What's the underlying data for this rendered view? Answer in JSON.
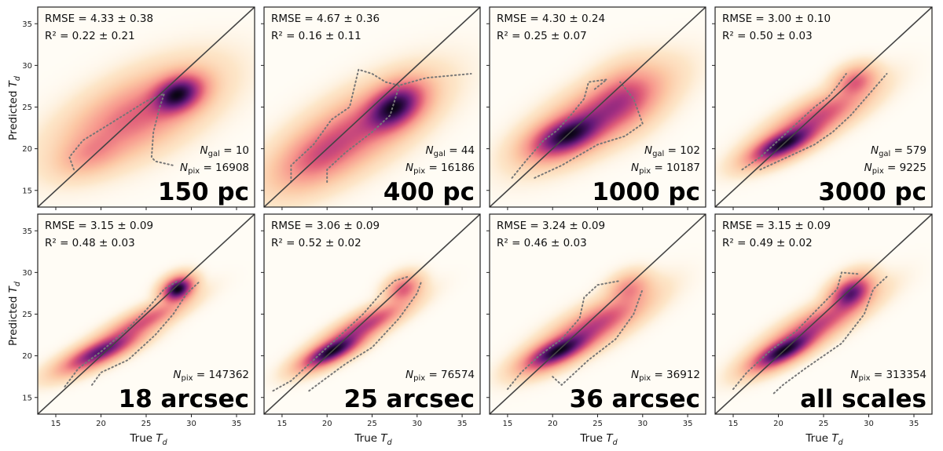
{
  "chart_data": {
    "type": "heatmap",
    "description_units": "dust temperature T_d",
    "axis": {
      "xlim": [
        13,
        37
      ],
      "ylim": [
        13,
        37
      ],
      "ticks": [
        15,
        20,
        25,
        30,
        35
      ]
    },
    "labels": {
      "x_main": "True ",
      "x_sub": "T",
      "x_subscript": "d",
      "y_main": "Predicted ",
      "y_sub": "T",
      "y_subscript": "d"
    },
    "panels": [
      {
        "id": "p150",
        "label": "150 pc",
        "rmse": "RMSE = 4.33 ± 0.38",
        "r2": "R² = 0.22 ± 0.21",
        "ngal_name": "N",
        "ngal_sub": "gal",
        "ngal": " = 10",
        "npix_name": "N",
        "npix_sub": "pix",
        "npix": " = 16908",
        "blobs": [
          {
            "x": 28.5,
            "y": 26.5,
            "sx": 1.6,
            "sy": 1.3,
            "rho": 0.3,
            "w": 1.0
          },
          {
            "x": 24,
            "y": 24,
            "sx": 4,
            "sy": 2.8,
            "rho": 0.6,
            "w": 0.3
          },
          {
            "x": 19,
            "y": 19.5,
            "sx": 2,
            "sy": 1.4,
            "rho": 0.4,
            "w": 0.14
          }
        ],
        "contour": [
          [
            17,
            17.5
          ],
          [
            16.5,
            19
          ],
          [
            18,
            21
          ],
          [
            21,
            23
          ],
          [
            25,
            25.7
          ],
          [
            27,
            26.6
          ],
          [
            26.5,
            25
          ],
          [
            25.8,
            22
          ],
          [
            25.6,
            19
          ],
          [
            26,
            18.5
          ],
          [
            28,
            18
          ]
        ]
      },
      {
        "id": "p400",
        "label": "400 pc",
        "rmse": "RMSE = 4.67 ± 0.36",
        "r2": "R² = 0.16 ± 0.11",
        "ngal_name": "N",
        "ngal_sub": "gal",
        "ngal": " = 44",
        "npix_name": "N",
        "npix_sub": "pix",
        "npix": " = 16186",
        "blobs": [
          {
            "x": 27.5,
            "y": 25,
            "sx": 1.8,
            "sy": 1.6,
            "rho": 0.4,
            "w": 1.0
          },
          {
            "x": 23,
            "y": 22,
            "sx": 4,
            "sy": 3,
            "rho": 0.7,
            "w": 0.35
          },
          {
            "x": 19,
            "y": 19,
            "sx": 2.5,
            "sy": 2,
            "rho": 0.5,
            "w": 0.2
          }
        ],
        "contour": [
          [
            16,
            16
          ],
          [
            16,
            18
          ],
          [
            18.5,
            20.5
          ],
          [
            20.5,
            23.5
          ],
          [
            22.5,
            25
          ],
          [
            23.5,
            29.5
          ],
          [
            25,
            29
          ],
          [
            26.5,
            28
          ],
          [
            28,
            27.6
          ],
          [
            31,
            28.5
          ],
          [
            36,
            29
          ]
        ],
        "contour2": [
          [
            20,
            16
          ],
          [
            20,
            17.5
          ],
          [
            22,
            19.5
          ],
          [
            25,
            22
          ],
          [
            27,
            24
          ],
          [
            28,
            27.5
          ]
        ]
      },
      {
        "id": "p1000",
        "label": "1000 pc",
        "rmse": "RMSE = 4.30 ± 0.24",
        "r2": "R² = 0.25 ± 0.07",
        "ngal_name": "N",
        "ngal_sub": "gal",
        "ngal": " = 102",
        "npix_name": "N",
        "npix_sub": "pix",
        "npix": " = 10187",
        "blobs": [
          {
            "x": 21.5,
            "y": 21.5,
            "sx": 2.2,
            "sy": 1.4,
            "rho": 0.5,
            "w": 1.0
          },
          {
            "x": 25,
            "y": 24,
            "sx": 3.5,
            "sy": 2.5,
            "rho": 0.7,
            "w": 0.5
          },
          {
            "x": 28,
            "y": 26,
            "sx": 2,
            "sy": 2,
            "rho": 0.3,
            "w": 0.25
          }
        ],
        "contour": [
          [
            15.5,
            16.5
          ],
          [
            17,
            18.5
          ],
          [
            19,
            21
          ],
          [
            20.5,
            22.2
          ],
          [
            22,
            24
          ],
          [
            23.5,
            26
          ],
          [
            24,
            28
          ],
          [
            26,
            28.3
          ],
          [
            24.5,
            27
          ]
        ],
        "contour2": [
          [
            18,
            16.5
          ],
          [
            21,
            18
          ],
          [
            25,
            20.5
          ],
          [
            28,
            21.5
          ],
          [
            30,
            23
          ],
          [
            29,
            26
          ],
          [
            27.5,
            28
          ]
        ]
      },
      {
        "id": "p3000",
        "label": "3000 pc",
        "rmse": "RMSE = 3.00 ± 0.10",
        "r2": "R² = 0.50 ± 0.03",
        "ngal_name": "N",
        "ngal_sub": "gal",
        "ngal": " = 579",
        "npix_name": "N",
        "npix_sub": "pix",
        "npix": " = 9225",
        "blobs": [
          {
            "x": 20.5,
            "y": 20.5,
            "sx": 2,
            "sy": 1.2,
            "rho": 0.7,
            "w": 1.0
          },
          {
            "x": 24,
            "y": 23.5,
            "sx": 3,
            "sy": 2,
            "rho": 0.8,
            "w": 0.4
          },
          {
            "x": 28.5,
            "y": 28,
            "sx": 1.2,
            "sy": 1,
            "rho": 0.3,
            "w": 0.3
          }
        ],
        "contour": [
          [
            16,
            17.5
          ],
          [
            18,
            19
          ],
          [
            20,
            21
          ],
          [
            22,
            23
          ],
          [
            24,
            25
          ],
          [
            25.5,
            26.2
          ],
          [
            26.5,
            27.5
          ],
          [
            27.5,
            29
          ]
        ],
        "contour2": [
          [
            18,
            17.5
          ],
          [
            21,
            19
          ],
          [
            24,
            20.5
          ],
          [
            26,
            22
          ],
          [
            28,
            24
          ],
          [
            30,
            26.5
          ],
          [
            32,
            29
          ]
        ]
      },
      {
        "id": "p18",
        "label": "18 arcsec",
        "rmse": "RMSE = 3.15 ± 0.09",
        "r2": "R² = 0.48 ± 0.03",
        "ngal_name": "",
        "ngal_sub": "",
        "ngal": "",
        "npix_name": "N",
        "npix_sub": "pix",
        "npix": " = 147362",
        "blobs": [
          {
            "x": 28.5,
            "y": 28,
            "sx": 0.9,
            "sy": 0.8,
            "rho": 0.3,
            "w": 1.0
          },
          {
            "x": 20,
            "y": 20.5,
            "sx": 2.3,
            "sy": 1.3,
            "rho": 0.8,
            "w": 0.7
          },
          {
            "x": 24.5,
            "y": 24,
            "sx": 2.5,
            "sy": 1.5,
            "rho": 0.85,
            "w": 0.3
          }
        ],
        "contour": [
          [
            16,
            16.3
          ],
          [
            17.5,
            18.5
          ],
          [
            20,
            20.5
          ],
          [
            23,
            23.3
          ],
          [
            25,
            25.5
          ],
          [
            27,
            28
          ],
          [
            28.5,
            29
          ]
        ],
        "contour2": [
          [
            19,
            16.5
          ],
          [
            20,
            18
          ],
          [
            23,
            19.5
          ],
          [
            26,
            22.5
          ],
          [
            28,
            25
          ],
          [
            29.5,
            27.5
          ],
          [
            31,
            29
          ]
        ]
      },
      {
        "id": "p25",
        "label": "25 arcsec",
        "rmse": "RMSE = 3.06 ± 0.09",
        "r2": "R² = 0.52 ± 0.02",
        "ngal_name": "",
        "ngal_sub": "",
        "ngal": "",
        "npix_name": "N",
        "npix_sub": "pix",
        "npix": " = 76574",
        "blobs": [
          {
            "x": 20.5,
            "y": 20.5,
            "sx": 1.8,
            "sy": 1.1,
            "rho": 0.75,
            "w": 1.0
          },
          {
            "x": 24,
            "y": 23.5,
            "sx": 2.5,
            "sy": 1.6,
            "rho": 0.85,
            "w": 0.45
          },
          {
            "x": 28.5,
            "y": 28,
            "sx": 1,
            "sy": 0.9,
            "rho": 0.3,
            "w": 0.3
          }
        ],
        "contour": [
          [
            14,
            15.8
          ],
          [
            16,
            17
          ],
          [
            18,
            19
          ],
          [
            20,
            21
          ],
          [
            22,
            23
          ],
          [
            24,
            25
          ],
          [
            26,
            27.5
          ],
          [
            27.5,
            29
          ],
          [
            29,
            29.5
          ]
        ],
        "contour2": [
          [
            18,
            15.8
          ],
          [
            19.5,
            17
          ],
          [
            22,
            19
          ],
          [
            25,
            21
          ],
          [
            28,
            24.5
          ],
          [
            30,
            27.5
          ],
          [
            30.5,
            29
          ]
        ]
      },
      {
        "id": "p36",
        "label": "36 arcsec",
        "rmse": "RMSE = 3.24 ± 0.09",
        "r2": "R² = 0.46 ± 0.03",
        "ngal_name": "",
        "ngal_sub": "",
        "ngal": "",
        "npix_name": "N",
        "npix_sub": "pix",
        "npix": " = 36912",
        "blobs": [
          {
            "x": 20.5,
            "y": 20.5,
            "sx": 2,
            "sy": 1.2,
            "rho": 0.7,
            "w": 1.0
          },
          {
            "x": 24.5,
            "y": 23.5,
            "sx": 3,
            "sy": 2,
            "rho": 0.8,
            "w": 0.45
          },
          {
            "x": 28.5,
            "y": 28,
            "sx": 1.2,
            "sy": 1,
            "rho": 0.3,
            "w": 0.2
          }
        ],
        "contour": [
          [
            15,
            16
          ],
          [
            16.5,
            18
          ],
          [
            18.5,
            20
          ],
          [
            21,
            22
          ],
          [
            23,
            24.5
          ],
          [
            23.5,
            27
          ],
          [
            25,
            28.5
          ],
          [
            27.5,
            29
          ]
        ],
        "contour2": [
          [
            20,
            17.5
          ],
          [
            21,
            16.5
          ],
          [
            24,
            19.5
          ],
          [
            27,
            22
          ],
          [
            29,
            25
          ],
          [
            30,
            28
          ]
        ]
      },
      {
        "id": "pall",
        "label": "all scales",
        "rmse": "RMSE = 3.15 ± 0.09",
        "r2": "R² = 0.49 ± 0.02",
        "ngal_name": "",
        "ngal_sub": "",
        "ngal": "",
        "npix_name": "N",
        "npix_sub": "pix",
        "npix": " = 313354",
        "blobs": [
          {
            "x": 20.5,
            "y": 20.5,
            "sx": 1.9,
            "sy": 1.2,
            "rho": 0.75,
            "w": 1.0
          },
          {
            "x": 28,
            "y": 27.5,
            "sx": 1.2,
            "sy": 1.1,
            "rho": 0.4,
            "w": 0.8
          },
          {
            "x": 24,
            "y": 23.5,
            "sx": 3,
            "sy": 2,
            "rho": 0.85,
            "w": 0.45
          }
        ],
        "contour": [
          [
            15,
            16
          ],
          [
            16.5,
            18
          ],
          [
            19,
            20.5
          ],
          [
            22,
            23
          ],
          [
            24.5,
            25.8
          ],
          [
            26.5,
            28
          ],
          [
            27,
            30
          ],
          [
            29,
            29.8
          ]
        ],
        "contour2": [
          [
            19.5,
            15.5
          ],
          [
            20.5,
            16.5
          ],
          [
            23,
            18.5
          ],
          [
            27,
            21.5
          ],
          [
            29.5,
            25
          ],
          [
            30.5,
            28
          ],
          [
            32,
            29.5
          ]
        ]
      }
    ]
  }
}
